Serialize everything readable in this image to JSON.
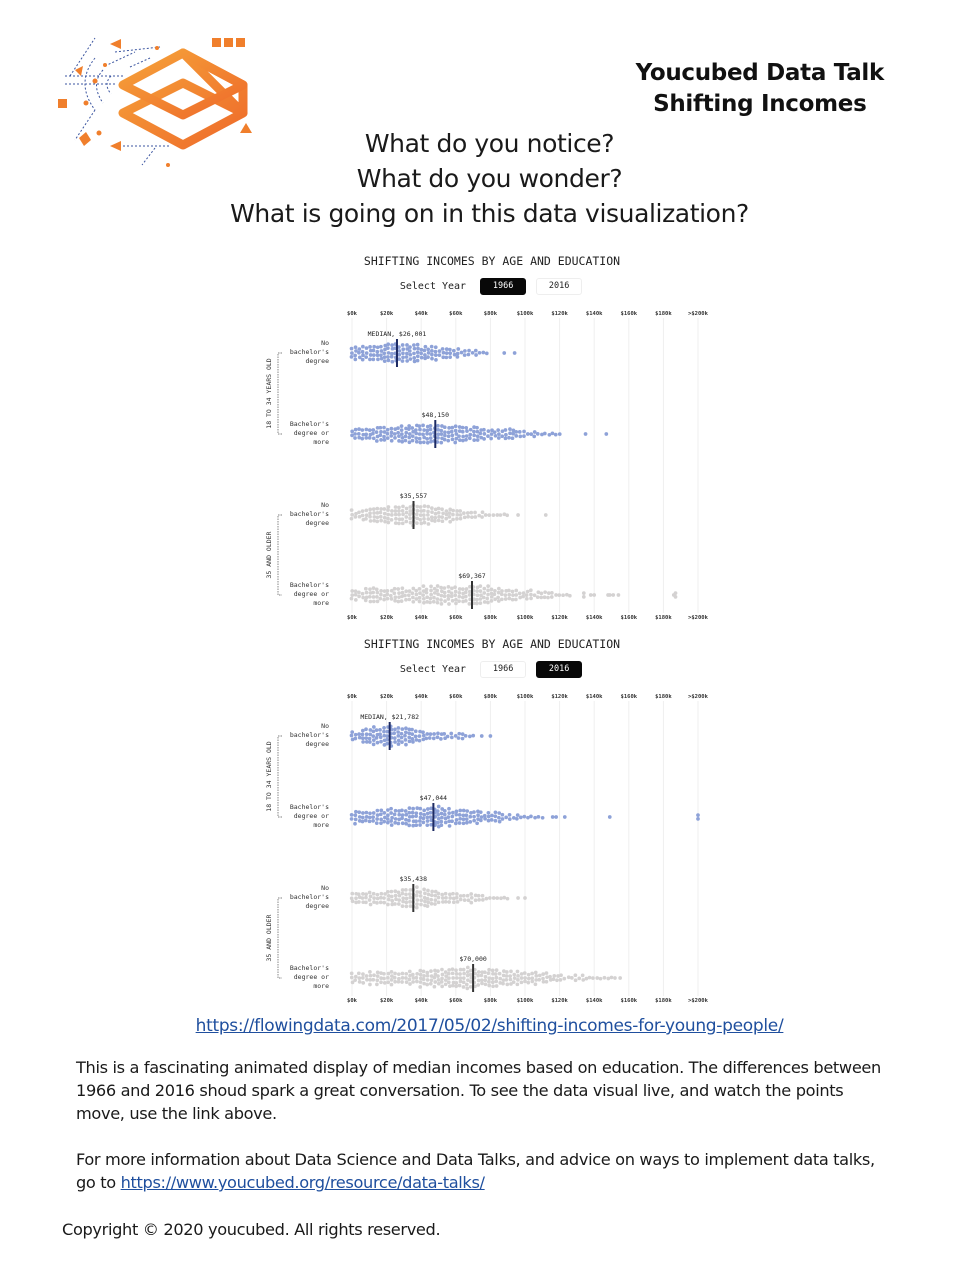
{
  "header": {
    "title_line1": "Youcubed Data Talk",
    "title_line2": "Shifting Incomes",
    "logo": "youcubed-logo-icon"
  },
  "questions": [
    "What do you notice?",
    "What do you wonder?",
    "What is going on in this data visualization?"
  ],
  "colors": {
    "brand_orange": "#f07f2c",
    "young_dots": "#8ea2d8",
    "young_median": "#1d2a63",
    "older_dots": "#d4d2d2",
    "older_median": "#333333",
    "link": "#1f4f9e"
  },
  "charts_ui": [
    {
      "title": "SHIFTING INCOMES BY AGE AND EDUCATION",
      "select_label": "Select Year",
      "years": [
        "1966",
        "2016"
      ],
      "selected_year": "1966"
    },
    {
      "title": "SHIFTING INCOMES BY AGE AND EDUCATION",
      "select_label": "Select Year",
      "years": [
        "1966",
        "2016"
      ],
      "selected_year": "2016"
    }
  ],
  "chart_data": [
    {
      "type": "scatter",
      "subtype": "beeswarm",
      "title": "SHIFTING INCOMES BY AGE AND EDUCATION",
      "year": "1966",
      "xlabel": "",
      "ylabel": "",
      "x_ticks": [
        "$0k",
        "$20k",
        "$40k",
        "$60k",
        "$80k",
        "$100k",
        "$120k",
        "$140k",
        "$160k",
        "$180k",
        ">$200k"
      ],
      "xlim": [
        0,
        200000
      ],
      "grid": true,
      "groups": [
        {
          "name": "18 TO 34 YEARS OLD",
          "rows": [
            0,
            1
          ]
        },
        {
          "name": "35 AND OLDER",
          "rows": [
            2,
            3
          ]
        }
      ],
      "series": [
        {
          "name": "No bachelor's degree",
          "group": "18 TO 34 YEARS OLD",
          "median": 26001,
          "median_label": "MEDIAN, $26,001",
          "range": [
            0,
            78000
          ],
          "outliers": [
            88000,
            94000
          ],
          "count": 190
        },
        {
          "name": "Bachelor's degree or more",
          "group": "18 TO 34 YEARS OLD",
          "median": 48150,
          "median_label": "$48,150",
          "range": [
            0,
            120000
          ],
          "outliers": [
            135000,
            147000
          ],
          "count": 200
        },
        {
          "name": "No bachelor's degree",
          "group": "35 AND OLDER",
          "median": 35557,
          "median_label": "$35,557",
          "range": [
            0,
            90000
          ],
          "outliers": [
            96000,
            112000
          ],
          "count": 190
        },
        {
          "name": "Bachelor's degree or more",
          "group": "35 AND OLDER",
          "median": 69367,
          "median_label": "$69,367",
          "range": [
            0,
            126000
          ],
          "outliers": [
            134000,
            134000,
            138000,
            140000,
            148000,
            149000,
            151000,
            154000,
            186000,
            187000,
            187000
          ],
          "count": 210
        }
      ]
    },
    {
      "type": "scatter",
      "subtype": "beeswarm",
      "title": "SHIFTING INCOMES BY AGE AND EDUCATION",
      "year": "2016",
      "xlabel": "",
      "ylabel": "",
      "x_ticks": [
        "$0k",
        "$20k",
        "$40k",
        "$60k",
        "$80k",
        "$100k",
        "$120k",
        "$140k",
        "$160k",
        "$180k",
        ">$200k"
      ],
      "xlim": [
        0,
        200000
      ],
      "grid": true,
      "groups": [
        {
          "name": "18 TO 34 YEARS OLD",
          "rows": [
            0,
            1
          ]
        },
        {
          "name": "35 AND OLDER",
          "rows": [
            2,
            3
          ]
        }
      ],
      "series": [
        {
          "name": "No bachelor's degree",
          "group": "18 TO 34 YEARS OLD",
          "median": 21782,
          "median_label": "MEDIAN, $21,782",
          "range": [
            0,
            70000
          ],
          "outliers": [
            75000,
            80000
          ],
          "count": 230
        },
        {
          "name": "Bachelor's degree or more",
          "group": "18 TO 34 YEARS OLD",
          "median": 47044,
          "median_label": "$47,044",
          "range": [
            0,
            110000
          ],
          "outliers": [
            116000,
            118000,
            123000,
            149000,
            200000,
            200000
          ],
          "count": 230
        },
        {
          "name": "No bachelor's degree",
          "group": "35 AND OLDER",
          "median": 35438,
          "median_label": "$35,438",
          "range": [
            0,
            90000
          ],
          "outliers": [
            96000,
            100000
          ],
          "count": 190
        },
        {
          "name": "Bachelor's degree or more",
          "group": "35 AND OLDER",
          "median": 70000,
          "median_label": "$70,000",
          "range": [
            0,
            150000
          ],
          "outliers": [
            152000,
            155000
          ],
          "count": 220
        }
      ]
    }
  ],
  "row_labels": [
    [
      "No",
      "bachelor's",
      "degree"
    ],
    [
      "Bachelor's",
      "degree or",
      "more"
    ],
    [
      "No",
      "bachelor's",
      "degree"
    ],
    [
      "Bachelor's",
      "degree or",
      "more"
    ]
  ],
  "source_link": "https://flowingdata.com/2017/05/02/shifting-incomes-for-young-people/",
  "paragraph1": "This is a fascinating animated display of median incomes based on education. The differences between 1966 and 2016 shoud spark a great conversation. To see the data visual live, and watch the points move, use the link above.",
  "paragraph2_text": "For more information about Data Science and Data Talks, and advice on ways to implement data talks, go to",
  "paragraph2_link": "https://www.youcubed.org/resource/data-talks/",
  "copyright": "Copyright © 2020 youcubed. All rights reserved."
}
